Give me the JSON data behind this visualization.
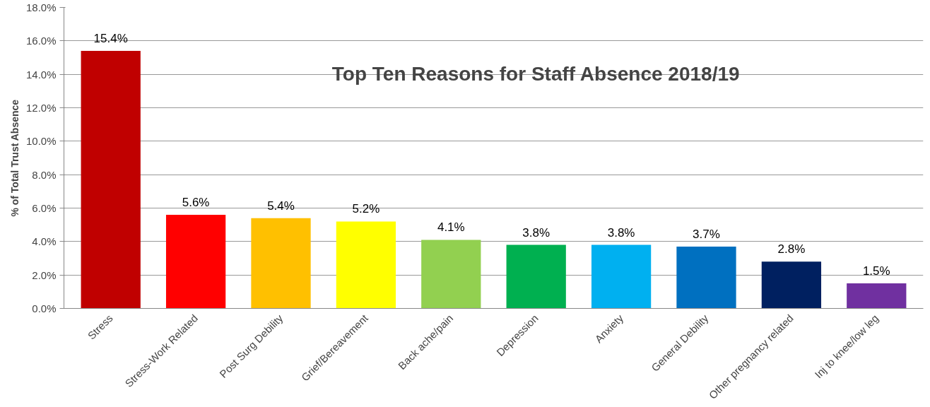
{
  "chart_data": {
    "type": "bar",
    "title": "Top Ten Reasons for Staff Absence 2018/19",
    "ylabel": "% of Total Trust Absence",
    "categories": [
      "Stress",
      "Stress-Work Related",
      "Post Surg Debility",
      "Grief/Bereavement",
      "Back ache/pain",
      "Depression",
      "Anxiety",
      "General Debility",
      "Other pregnancy related",
      "Inj to knee/low leg"
    ],
    "values": [
      15.4,
      5.6,
      5.4,
      5.2,
      4.1,
      3.8,
      3.8,
      3.7,
      2.8,
      1.5
    ],
    "value_labels": [
      "15.4%",
      "5.6%",
      "5.4%",
      "5.2%",
      "4.1%",
      "3.8%",
      "3.8%",
      "3.7%",
      "2.8%",
      "1.5%"
    ],
    "colors": [
      "#c00000",
      "#ff0000",
      "#ffc000",
      "#ffff00",
      "#92d050",
      "#00b050",
      "#00b0f0",
      "#0070c0",
      "#002060",
      "#7030a0"
    ],
    "ylim": [
      0,
      18
    ],
    "yticks": [
      {
        "value": 0,
        "label": "0.0%"
      },
      {
        "value": 2,
        "label": "2.0%"
      },
      {
        "value": 4,
        "label": "4.0%"
      },
      {
        "value": 6,
        "label": "6.0%"
      },
      {
        "value": 8,
        "label": "8.0%"
      },
      {
        "value": 10,
        "label": "10.0%"
      },
      {
        "value": 12,
        "label": "12.0%"
      },
      {
        "value": 14,
        "label": "14.0%"
      },
      {
        "value": 16,
        "label": "16.0%"
      },
      {
        "value": 18,
        "label": "18.0%"
      }
    ],
    "grid": "y"
  }
}
